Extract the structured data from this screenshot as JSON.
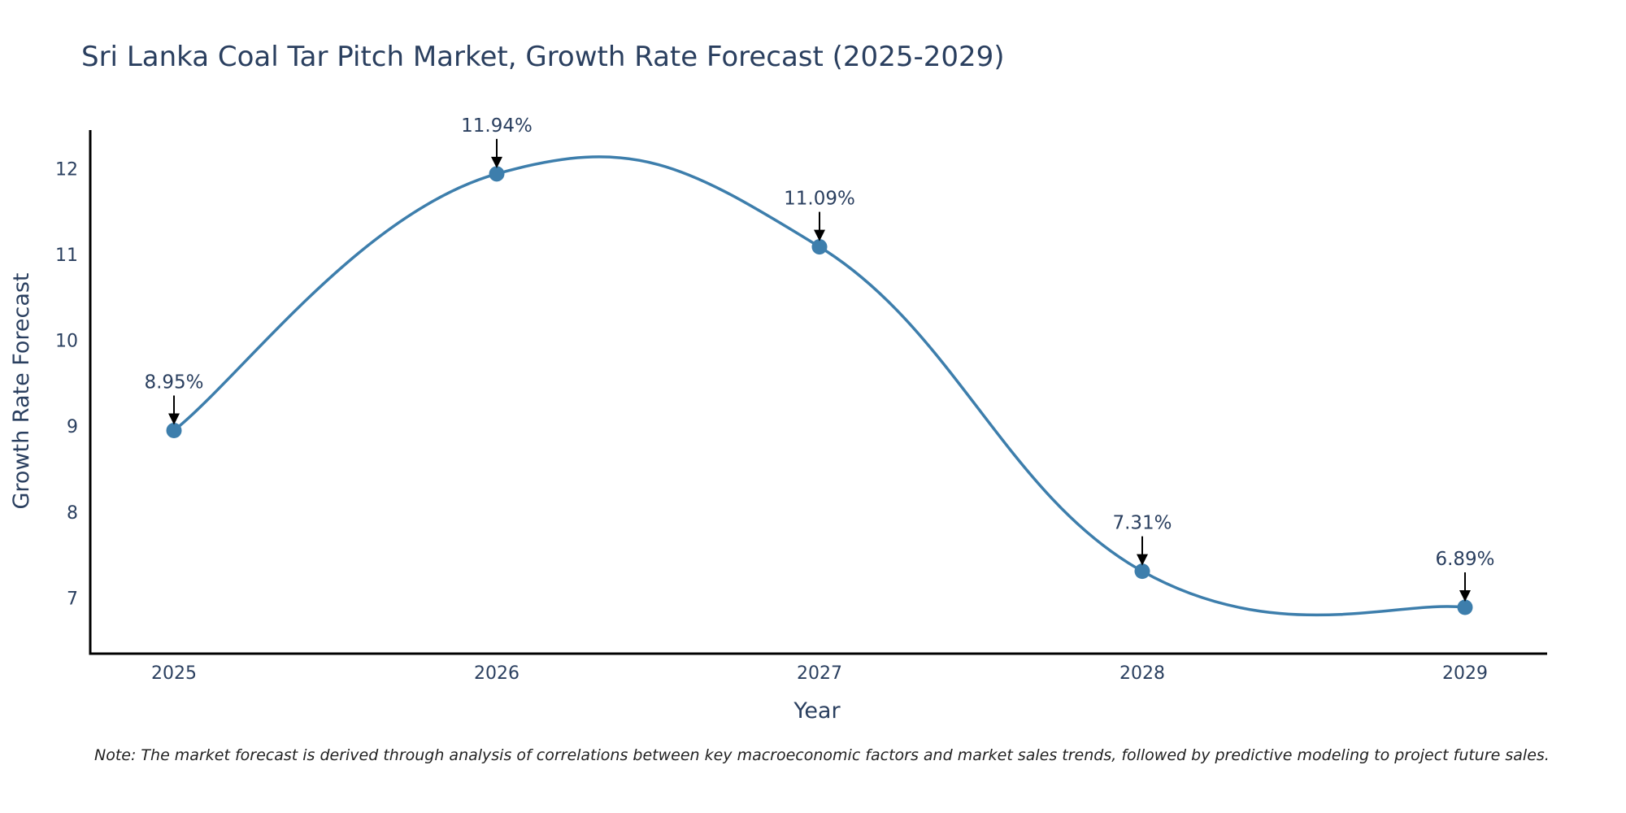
{
  "chart_data": {
    "type": "line",
    "title": "Sri Lanka Coal Tar Pitch Market, Growth Rate Forecast (2025-2029)",
    "xlabel": "Year",
    "ylabel": "Growth Rate Forecast",
    "categories": [
      "2025",
      "2026",
      "2027",
      "2028",
      "2029"
    ],
    "values": [
      8.95,
      11.94,
      11.09,
      7.31,
      6.89
    ],
    "annotations": [
      "8.95%",
      "11.94%",
      "11.09%",
      "7.31%",
      "6.89%"
    ],
    "y_ticks": [
      7,
      8,
      9,
      10,
      11,
      12
    ],
    "y_tick_labels": [
      "7",
      "8",
      "9",
      "10",
      "11",
      "12"
    ],
    "ylim": [
      6.35,
      12.45
    ],
    "grid": false,
    "line_shape": "spline",
    "colors": {
      "line": "#3d7eac",
      "marker": "#3d7eac",
      "axis": "#000000",
      "text": "#2a3f5f",
      "arrow": "#000000"
    }
  },
  "note": "Note: The market forecast is derived through analysis of correlations between key macroeconomic factors and market sales trends, followed by predictive modeling to project future sales."
}
